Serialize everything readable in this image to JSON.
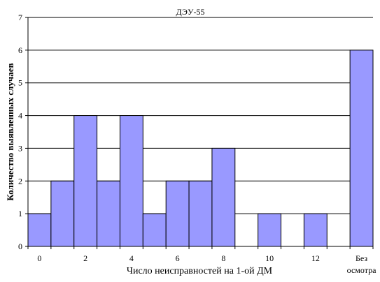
{
  "chart_data": {
    "type": "bar",
    "title": "ДЭУ-55",
    "xlabel": "Число неисправностей на 1-ой ДМ",
    "ylabel": "Количество выявленных случаев",
    "ylim": [
      0,
      7
    ],
    "yticks": [
      0,
      1,
      2,
      3,
      4,
      5,
      6,
      7
    ],
    "categories": [
      "0",
      "1",
      "2",
      "3",
      "4",
      "5",
      "6",
      "7",
      "8",
      "9",
      "10",
      "11",
      "12",
      "13",
      "Без осмотра"
    ],
    "values": [
      1,
      2,
      4,
      2,
      4,
      1,
      2,
      2,
      3,
      0,
      1,
      0,
      1,
      0,
      6
    ],
    "x_tick_labels": [
      {
        "category": "0",
        "lines": [
          "0"
        ]
      },
      {
        "category": "2",
        "lines": [
          "2"
        ]
      },
      {
        "category": "4",
        "lines": [
          "4"
        ]
      },
      {
        "category": "6",
        "lines": [
          "6"
        ]
      },
      {
        "category": "8",
        "lines": [
          "8"
        ]
      },
      {
        "category": "10",
        "lines": [
          "10"
        ]
      },
      {
        "category": "12",
        "lines": [
          "12"
        ]
      },
      {
        "category": "Без осмотра",
        "lines": [
          "Без",
          "осмотра"
        ]
      }
    ],
    "grid": true,
    "legend": "none",
    "colors": {
      "bar_fill": "#9999ff",
      "bar_stroke": "#000000",
      "plot_background": "#ffffff",
      "grid": "#000000"
    }
  }
}
